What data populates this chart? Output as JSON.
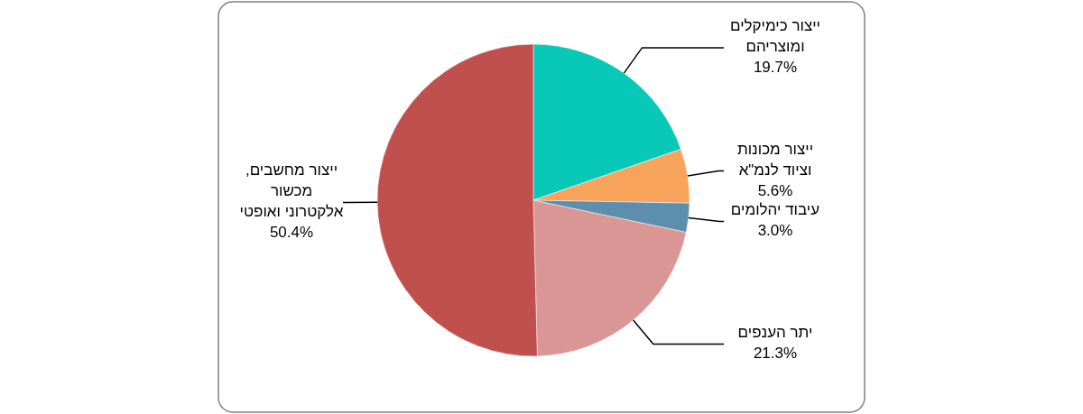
{
  "chart_data": {
    "type": "pie",
    "categories": [
      "ייצור כימיקלים\nומוצריהם",
      "ייצור מכונות\nוציוד לנמ\"א",
      "עיבוד יהלומים",
      "יתר הענפים",
      "ייצור מחשבים,\nמכשור\nאלקטרוני ואופטי"
    ],
    "values": [
      19.7,
      5.6,
      3.0,
      21.3,
      50.4
    ],
    "value_labels": [
      "19.7%",
      "5.6%",
      "3.0%",
      "21.3%",
      "50.4%"
    ],
    "colors": [
      "#08c8b8",
      "#f7a35c",
      "#5b8fad",
      "#d99694",
      "#c0504d"
    ]
  }
}
